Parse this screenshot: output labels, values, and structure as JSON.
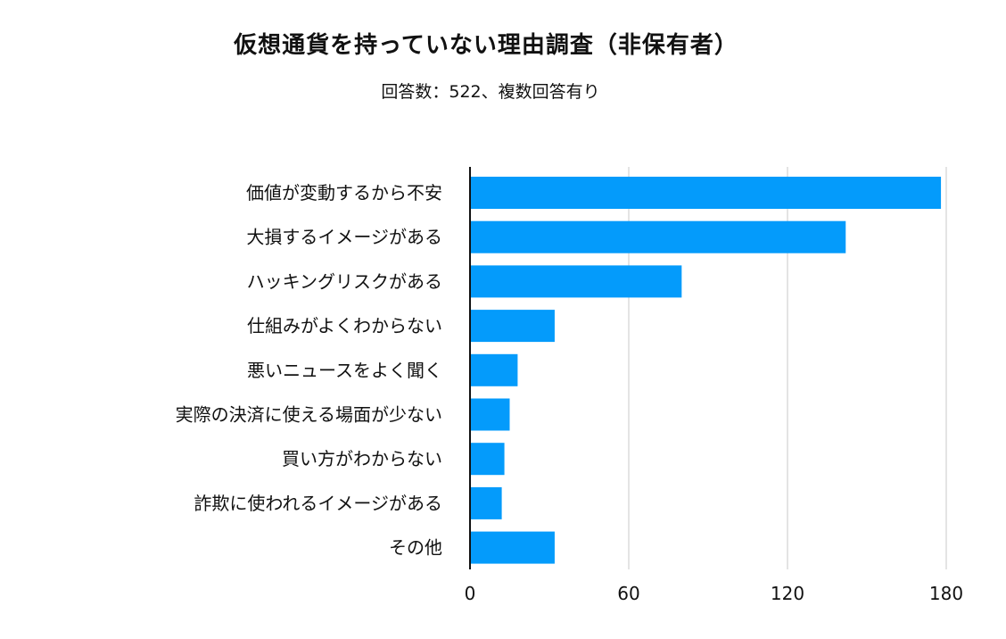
{
  "chart_data": {
    "type": "bar",
    "orientation": "horizontal",
    "title": "仮想通貨を持っていない理由調査（非保有者）",
    "subtitle": "回答数：522、複数回答有り",
    "categories": [
      "価値が変動するから不安",
      "大損するイメージがある",
      "ハッキングリスクがある",
      "仕組みがよくわからない",
      "悪いニュースをよく聞く",
      "実際の決済に使える場面が少ない",
      "買い方がわからない",
      "詐欺に使われるイメージがある",
      "その他"
    ],
    "values": [
      178,
      142,
      80,
      32,
      18,
      15,
      13,
      12,
      32
    ],
    "xlim": [
      0,
      180
    ],
    "xticks": [
      "0",
      "60",
      "120",
      "180"
    ],
    "xlabel": "",
    "ylabel": "",
    "grid": true,
    "bar_color": "#049BFB",
    "grid_color": "#C8C8C8",
    "axis_color": "#111111"
  }
}
